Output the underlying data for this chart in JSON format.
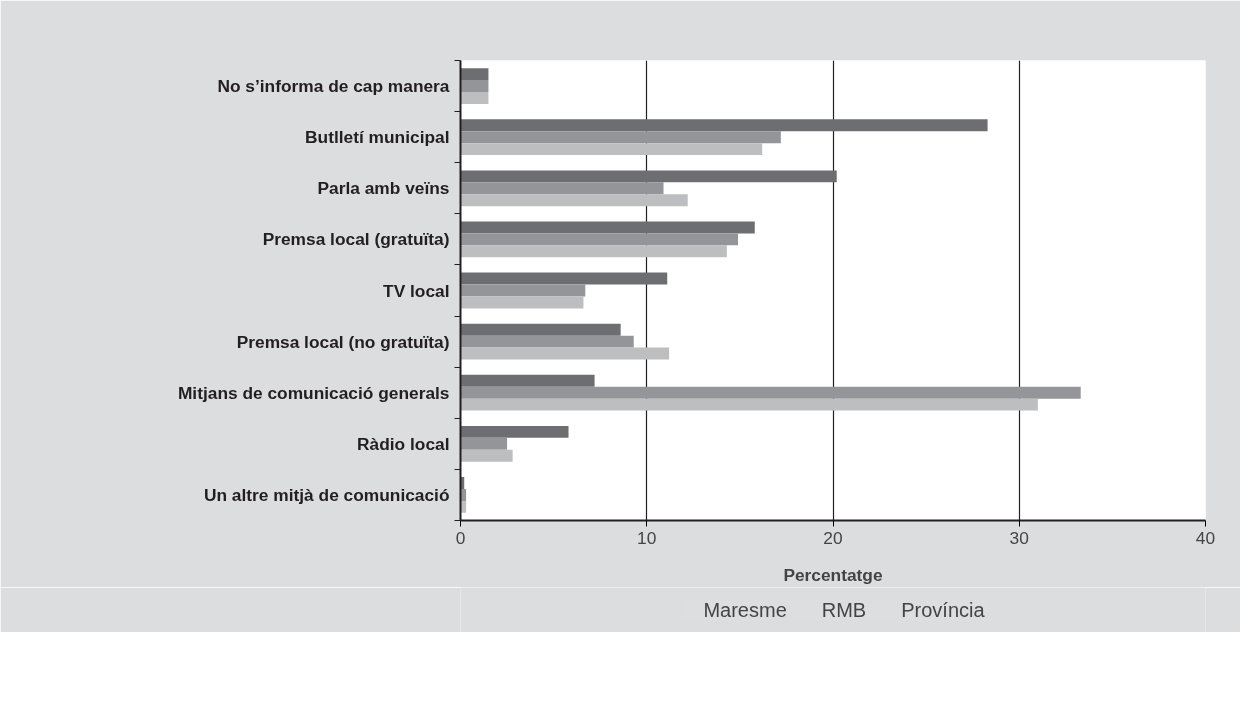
{
  "chart_data": {
    "type": "bar",
    "orientation": "horizontal",
    "xlabel": "Percentatge",
    "categories": [
      "No s’informa de cap manera",
      "Butlletí municipal",
      "Parla amb veïns",
      "Premsa local (gratuïta)",
      "TV local",
      "Premsa local (no gratuïta)",
      "Mitjans de comunicació generals",
      "Ràdio local",
      "Un altre mitjà de comunicació"
    ],
    "series": [
      {
        "name": "Maresme",
        "color": "#6d6e71",
        "values": [
          1.5,
          28.3,
          20.2,
          15.8,
          11.1,
          8.6,
          7.2,
          5.8,
          0.2
        ]
      },
      {
        "name": "RMB",
        "color": "#939598",
        "values": [
          1.5,
          17.2,
          10.9,
          14.9,
          6.7,
          9.3,
          33.3,
          2.5,
          0.3
        ]
      },
      {
        "name": "Província",
        "color": "#bcbec0",
        "values": [
          1.5,
          16.2,
          12.2,
          14.3,
          6.6,
          11.2,
          31.0,
          2.8,
          0.3
        ]
      }
    ],
    "xlim": [
      0,
      40
    ],
    "xticks": [
      0,
      10,
      20,
      30,
      40
    ],
    "grid": "x",
    "legend": "bottom"
  }
}
